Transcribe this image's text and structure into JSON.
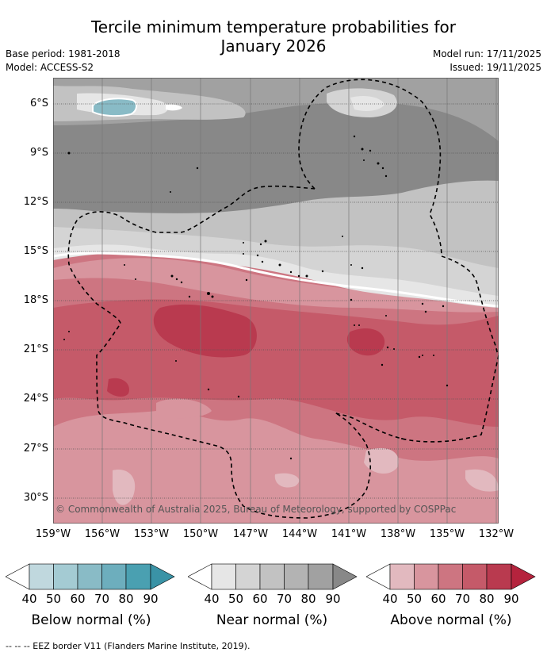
{
  "title_line1": "Tercile minimum temperature probabilities for",
  "title_line2": "January 2026",
  "base_period": "Base period: 1981-2018",
  "model": "Model: ACCESS-S2",
  "model_run": "Model run: 17/11/2025",
  "issued": "Issued: 19/11/2025",
  "lat_labels": [
    "6°S",
    "9°S",
    "12°S",
    "15°S",
    "18°S",
    "21°S",
    "24°S",
    "27°S",
    "30°S"
  ],
  "lon_labels": [
    "159°W",
    "156°W",
    "153°W",
    "150°W",
    "147°W",
    "144°W",
    "141°W",
    "138°W",
    "135°W",
    "132°W"
  ],
  "copyright": "© Commonwealth of Australia 2025, Bureau of Meteorology, supported by COSPPac",
  "colorbars": [
    {
      "label": "Below normal (%)",
      "ticks": [
        "40",
        "50",
        "60",
        "70",
        "80",
        "90"
      ],
      "colors": [
        "#ffffff",
        "#c0d8de",
        "#a4cbd3",
        "#89bbc6",
        "#6daebd",
        "#4aa0b1",
        "#3a93a6"
      ]
    },
    {
      "label": "Near normal (%)",
      "ticks": [
        "40",
        "50",
        "60",
        "70",
        "80",
        "90"
      ],
      "colors": [
        "#ffffff",
        "#e6e6e6",
        "#d4d4d4",
        "#c2c2c2",
        "#b3b3b3",
        "#a1a1a1",
        "#888888"
      ]
    },
    {
      "label": "Above normal (%)",
      "ticks": [
        "40",
        "50",
        "60",
        "70",
        "80",
        "90"
      ],
      "colors": [
        "#ffffff",
        "#e2b9bf",
        "#d8959e",
        "#cd7581",
        "#c55a69",
        "#b93a4f",
        "#b5233d"
      ]
    }
  ],
  "eez_legend": "--  --  -- EEZ border V11 (Flanders Marine Institute, 2019)."
}
